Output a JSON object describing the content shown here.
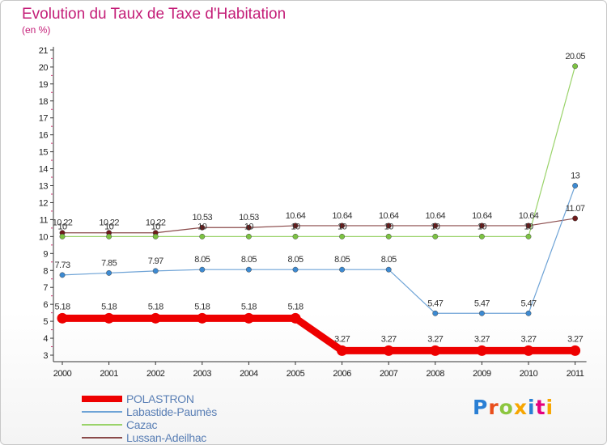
{
  "title": "Evolution du Taux de Taxe d'Habitation",
  "subtitle": "(en %)",
  "logo": {
    "text": "Proxiti",
    "colors": [
      "#2a7fd4",
      "#e94e1b",
      "#8cc63f",
      "#f7a600",
      "#2a7fd4",
      "#e5007e",
      "#f7a600"
    ]
  },
  "chart_data": {
    "type": "line",
    "x": [
      "2000",
      "2001",
      "2002",
      "2003",
      "2004",
      "2005",
      "2006",
      "2007",
      "2008",
      "2009",
      "2010",
      "2011"
    ],
    "ylim": [
      3,
      21
    ],
    "yticks": [
      3,
      4,
      5,
      6,
      7,
      8,
      9,
      10,
      11,
      12,
      13,
      14,
      15,
      16,
      17,
      18,
      19,
      20,
      21
    ],
    "grid": false,
    "legend_position": "bottom-left",
    "series": [
      {
        "name": "Lussan-Adeilhac",
        "color": "#6e1a1a",
        "line_color": "#8a4a4a",
        "width": 1.2,
        "values": [
          10.22,
          10.22,
          10.22,
          10.53,
          10.53,
          10.64,
          10.64,
          10.64,
          10.64,
          10.64,
          10.64,
          11.07
        ],
        "labels": [
          "10.22",
          "10.22",
          "10.22",
          "10.53",
          "10.53",
          "10.64",
          "10.64",
          "10.64",
          "10.64",
          "10.64",
          "10.64",
          "11.07"
        ]
      },
      {
        "name": "Cazac",
        "color": "#7cc242",
        "line_color": "#9ad36a",
        "width": 1.2,
        "values": [
          10,
          10,
          10,
          10,
          10,
          10,
          10,
          10,
          10,
          10,
          10,
          20.05
        ],
        "labels": [
          "10",
          "10",
          "10",
          "10",
          "10",
          "10",
          "10",
          "10",
          "10",
          "10",
          "10",
          "20.05"
        ]
      },
      {
        "name": "Labastide-Paumès",
        "color": "#3c8ad2",
        "line_color": "#6ea3d6",
        "width": 1.2,
        "values": [
          7.73,
          7.85,
          7.97,
          8.05,
          8.05,
          8.05,
          8.05,
          8.05,
          5.47,
          5.47,
          5.47,
          13
        ],
        "labels": [
          "7.73",
          "7.85",
          "7.97",
          "8.05",
          "8.05",
          "8.05",
          "8.05",
          "8.05",
          "5.47",
          "5.47",
          "5.47",
          "13"
        ]
      },
      {
        "name": "POLASTRON",
        "color": "#ee0000",
        "line_color": "#ee0000",
        "width": 9,
        "values": [
          5.18,
          5.18,
          5.18,
          5.18,
          5.18,
          5.18,
          3.27,
          3.27,
          3.27,
          3.27,
          3.27,
          3.27
        ],
        "labels": [
          "5.18",
          "5.18",
          "5.18",
          "5.18",
          "5.18",
          "5.18",
          "3.27",
          "3.27",
          "3.27",
          "3.27",
          "3.27",
          "3.27"
        ]
      }
    ],
    "legend_order": [
      "POLASTRON",
      "Labastide-Paumès",
      "Cazac",
      "Lussan-Adeilhac"
    ]
  }
}
